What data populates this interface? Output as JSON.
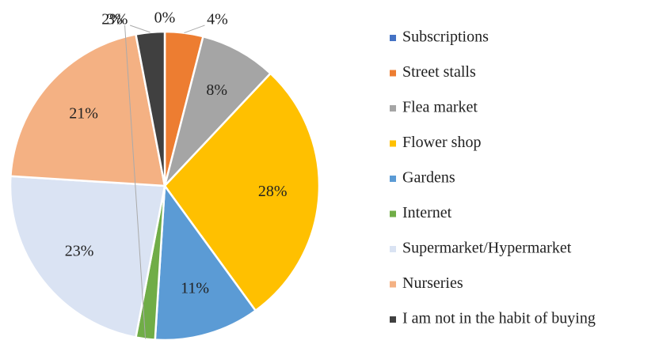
{
  "chart_data": {
    "type": "pie",
    "categories": [
      "Subscriptions",
      "Street stalls",
      "Flea market",
      "Flower shop",
      "Gardens",
      "Internet",
      "Supermarket/Hypermarket",
      "Nurseries",
      "I am not in the habit of buying"
    ],
    "values": [
      0,
      4,
      8,
      28,
      11,
      2,
      23,
      21,
      3
    ],
    "value_labels": [
      "0%",
      "4%",
      "8%",
      "28%",
      "11%",
      "2%",
      "23%",
      "21%",
      "3%"
    ],
    "colors": [
      "#4472c4",
      "#ed7d31",
      "#a5a5a5",
      "#ffc000",
      "#5b9bd5",
      "#70ad47",
      "#dae3f3",
      "#f4b183",
      "#404040"
    ],
    "legend": "right"
  }
}
